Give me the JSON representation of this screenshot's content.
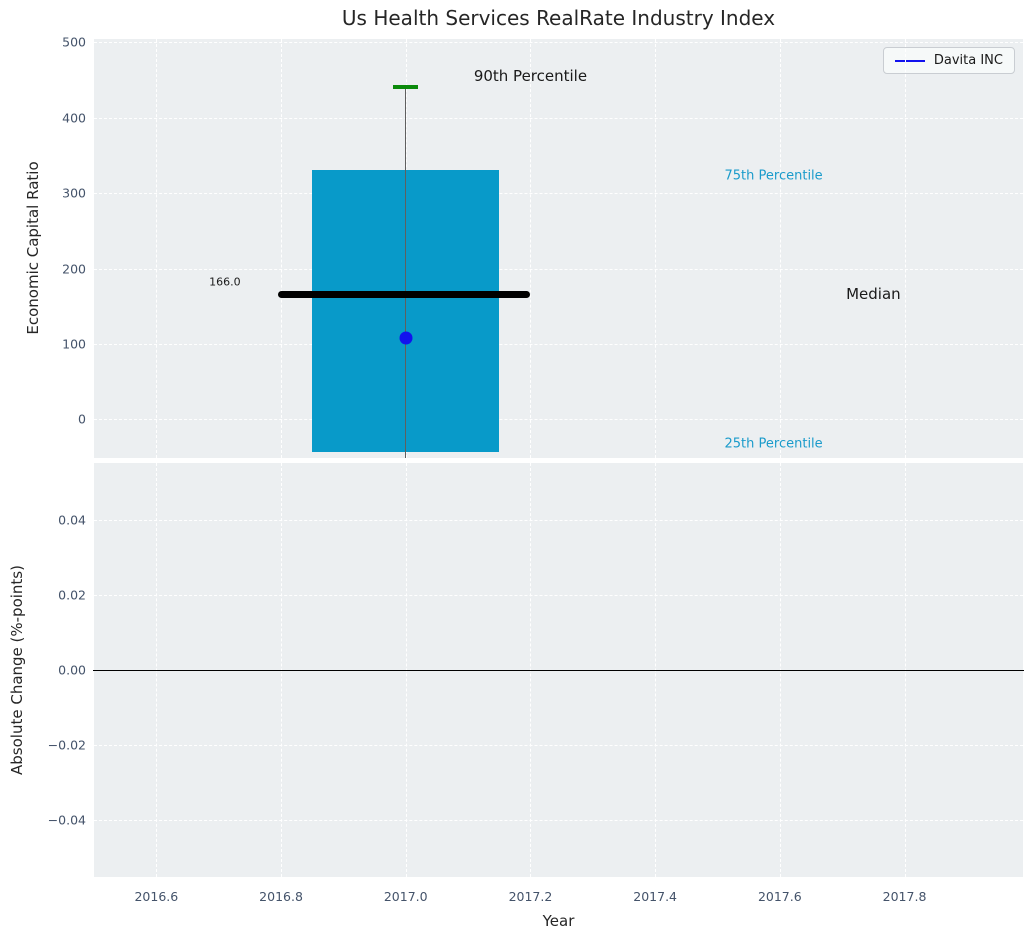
{
  "title": "Us Health Services RealRate Industry Index",
  "legend": {
    "label": "Davita INC",
    "line_color": "#1212ee"
  },
  "colors": {
    "plot_background": "#eceff1",
    "grid": "#ffffff",
    "tick_label": "#44536a",
    "bar": "#089ac9",
    "percentile_text": "#1a9bcb",
    "cap_green": "#0b8a0b",
    "company_blue": "#1212ee",
    "median_black": "#000000",
    "whisker_gray": "#5f5f5f"
  },
  "x_axis": {
    "label": "Year",
    "xlim": [
      2016.5,
      2017.99
    ],
    "ticks": [
      {
        "value": 2016.6,
        "label": "2016.6"
      },
      {
        "value": 2016.8,
        "label": "2016.8"
      },
      {
        "value": 2017.0,
        "label": "2017.0"
      },
      {
        "value": 2017.2,
        "label": "2017.2"
      },
      {
        "value": 2017.4,
        "label": "2017.4"
      },
      {
        "value": 2017.6,
        "label": "2017.6"
      },
      {
        "value": 2017.8,
        "label": "2017.8"
      }
    ]
  },
  "chart_data": [
    {
      "type": "box",
      "panel": "top",
      "ylabel": "Economic Capital Ratio",
      "ylim": [
        -51,
        504
      ],
      "yticks": [
        {
          "value": 0,
          "label": "0"
        },
        {
          "value": 100,
          "label": "100"
        },
        {
          "value": 200,
          "label": "200"
        },
        {
          "value": 300,
          "label": "300"
        },
        {
          "value": 400,
          "label": "400"
        },
        {
          "value": 500,
          "label": "500"
        }
      ],
      "box": {
        "x_center": 2017.0,
        "x_left": 2016.85,
        "x_right": 2017.15,
        "p90": 440,
        "p75": 330,
        "median": 166.0,
        "p25": -43,
        "whisker_low_clipped_below_axis": true
      },
      "median_line": {
        "x1": 2016.795,
        "x2": 2017.2,
        "value": 166.0
      },
      "cap_90th": {
        "x1": 2016.98,
        "x2": 2017.02,
        "value": 440
      },
      "company_point": {
        "name": "Davita INC",
        "x": 2017.0,
        "value": 108
      },
      "annotations": [
        {
          "text": "90th Percentile",
          "x": 2017.2,
          "y": 455,
          "color": "#1a1a1a",
          "size": 15
        },
        {
          "text": "75th Percentile",
          "x": 2017.59,
          "y": 322,
          "color": "#1a9bcb",
          "size": 13
        },
        {
          "text": "Median",
          "x": 2017.75,
          "y": 166,
          "color": "#1a1a1a",
          "size": 15
        },
        {
          "text": "25th Percentile",
          "x": 2017.59,
          "y": -33,
          "color": "#1a9bcb",
          "size": 13
        },
        {
          "text": "166.0",
          "x": 2016.71,
          "y": 182,
          "color": "#1a1a1a",
          "size": 11
        }
      ]
    },
    {
      "type": "line",
      "panel": "bottom",
      "ylabel": "Absolute Change (%-points)",
      "ylim": [
        -0.0553,
        0.0553
      ],
      "yticks": [
        {
          "value": 0.04,
          "label": "0.04"
        },
        {
          "value": 0.02,
          "label": "0.02"
        },
        {
          "value": 0.0,
          "label": "0.00"
        },
        {
          "value": -0.02,
          "label": "−0.02"
        },
        {
          "value": -0.04,
          "label": "−0.04"
        }
      ],
      "zero_line": {
        "value": 0.0
      },
      "series": []
    }
  ]
}
